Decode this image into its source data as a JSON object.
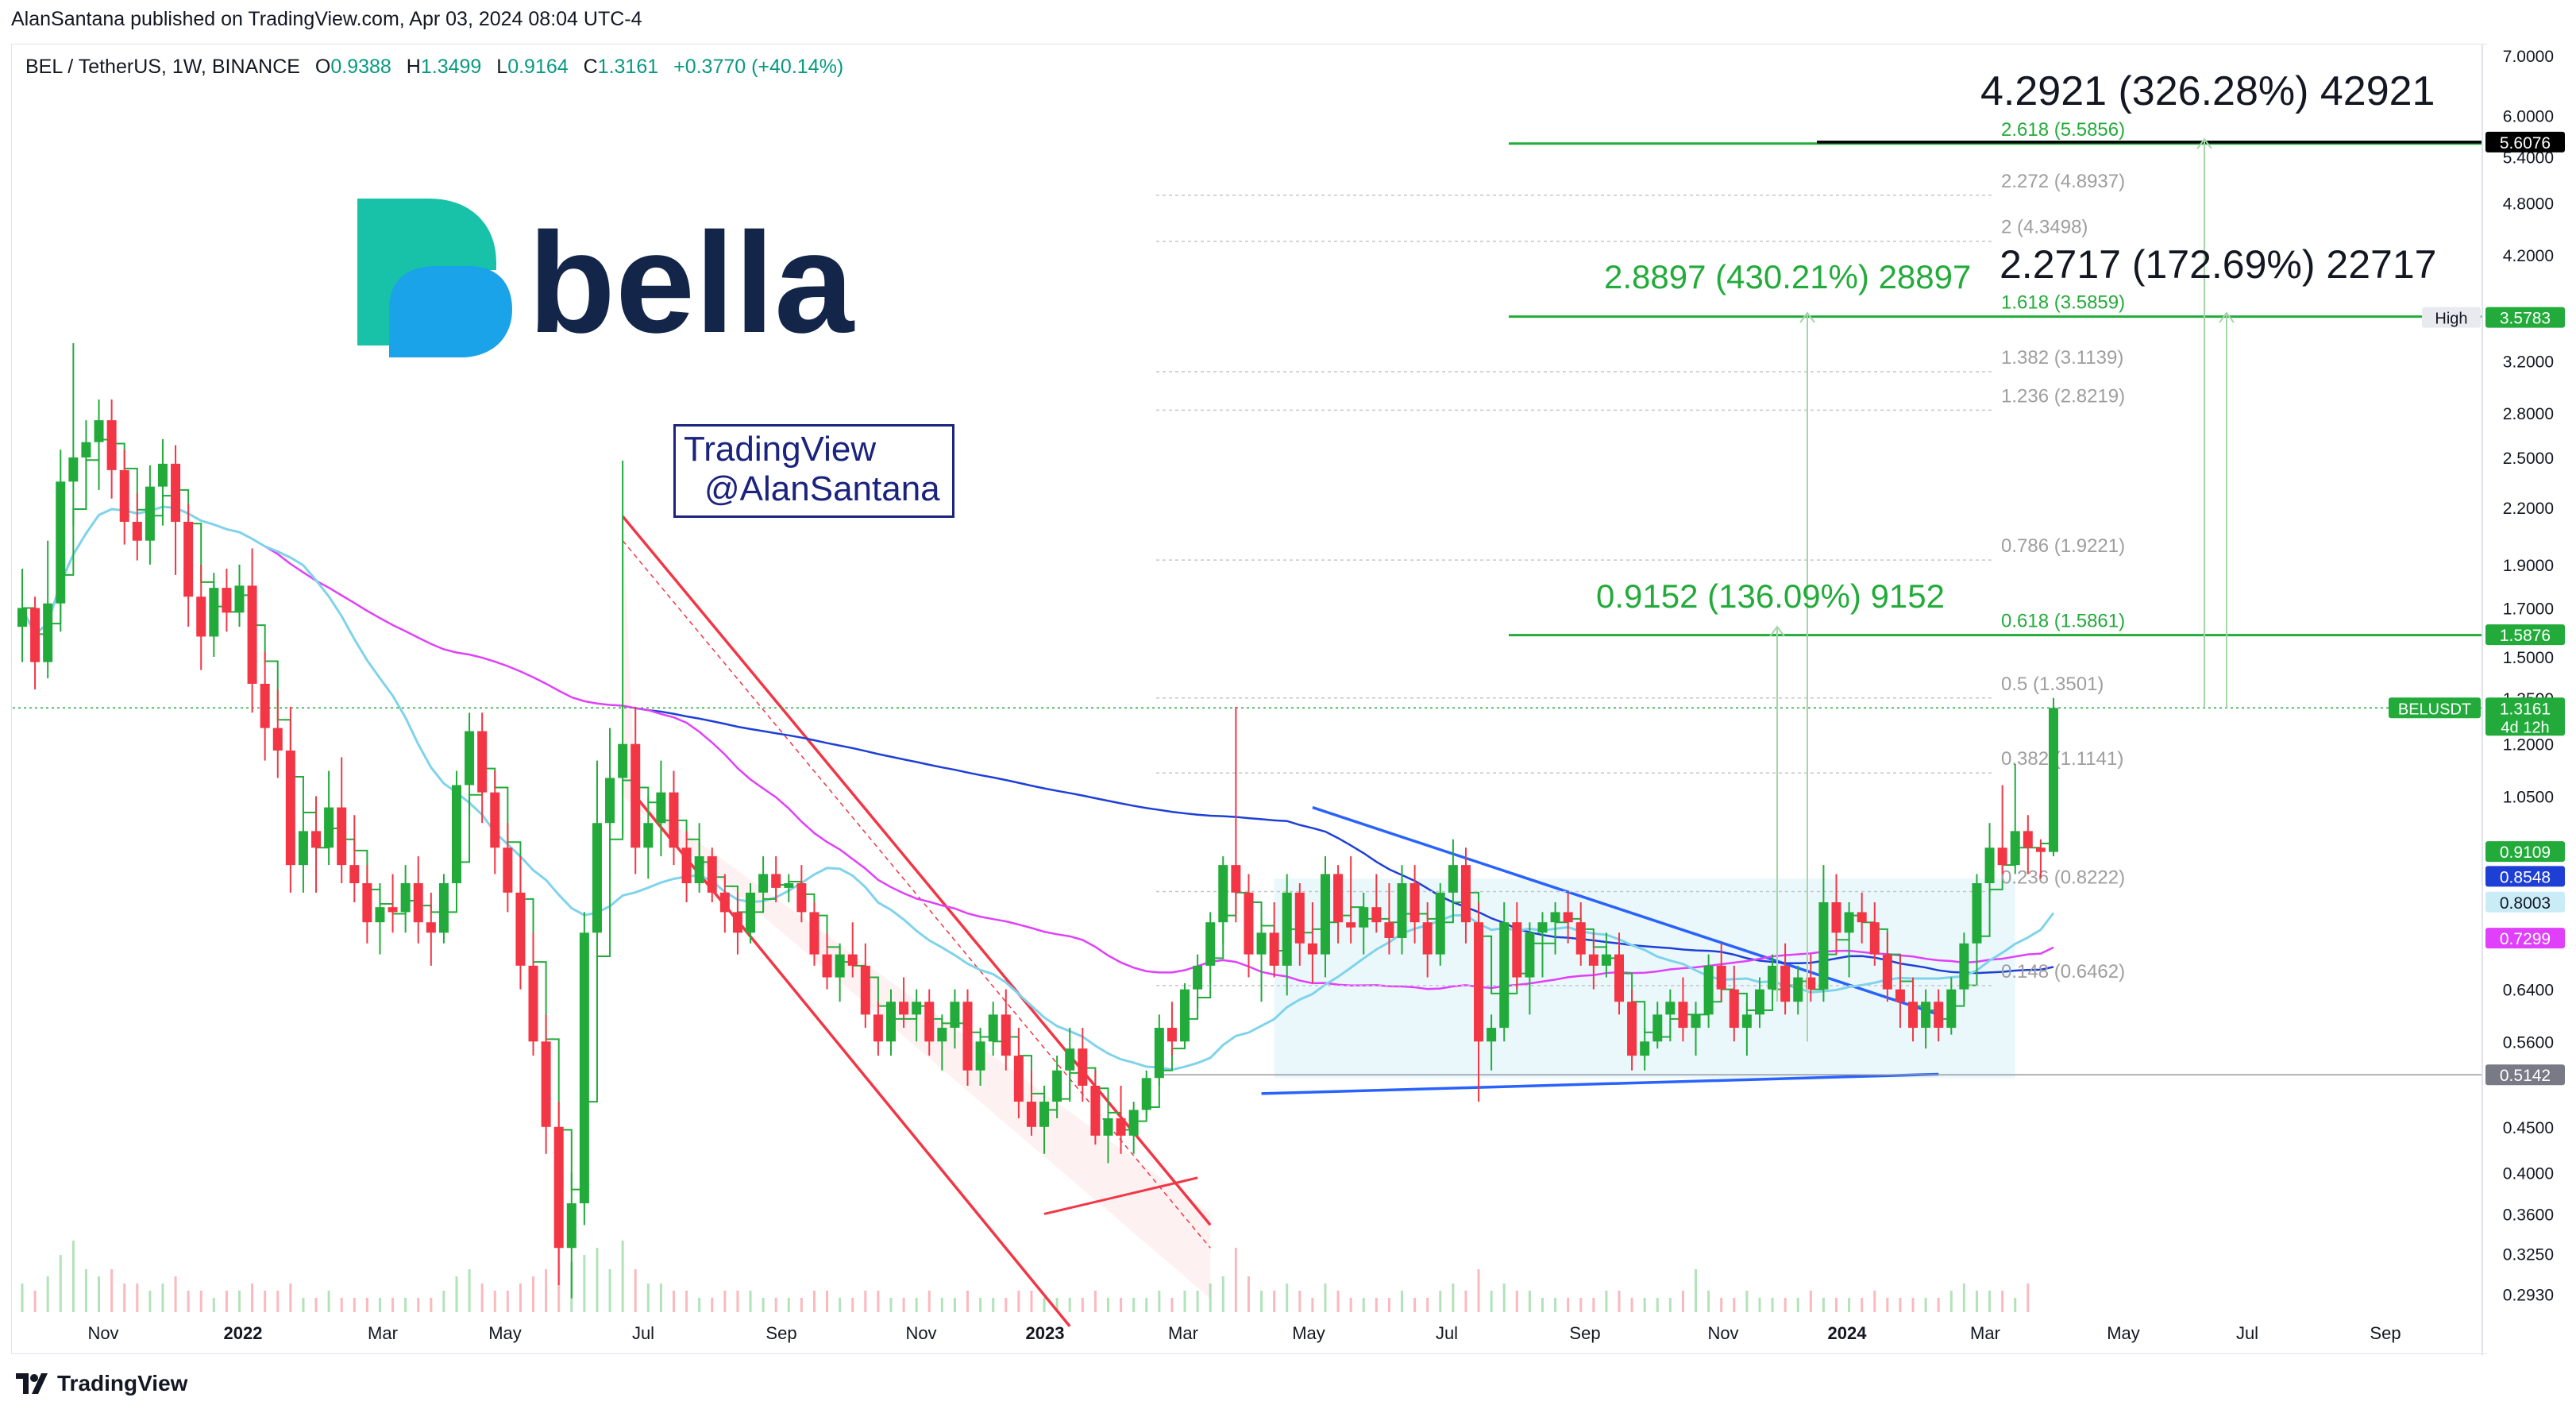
{
  "header": {
    "published_line": "AlanSantana published on TradingView.com, Apr 03, 2024 08:04 UTC-4"
  },
  "symbol": {
    "title": "BEL / TetherUS, 1W, BINANCE",
    "o_label": "O",
    "o": "0.9388",
    "h_label": "H",
    "h": "1.3499",
    "l_label": "L",
    "l": "0.9164",
    "c_label": "C",
    "c": "1.3161",
    "change": "+0.3770 (+40.14%)"
  },
  "logo": {
    "text": "bella",
    "color_dark": "#13264a",
    "color_teal": "#17c2a8",
    "color_blue": "#1aa3e8"
  },
  "watermark": {
    "line1": "TradingView",
    "line2": "@AlanSantana"
  },
  "footer": {
    "brand": "TradingView",
    "icon": "tradingview-logo-icon"
  },
  "colors": {
    "up": "#089981",
    "up_candle": "#22ab3a",
    "down": "#f23645",
    "grid_text": "#131722",
    "fib": "#9e9e9e",
    "fib_green": "#22ab3a",
    "sma_blue": "#1e3fd6",
    "sma_magenta": "#e040fb",
    "sma_cyan": "#7fd3ea",
    "channel_red": "#f23645",
    "triangle_blue": "#2962ff"
  },
  "chart_data": {
    "type": "candlestick",
    "scale": "log",
    "ylim": [
      0.28,
      7.2
    ],
    "y_ticks": [
      "7.0000",
      "6.0000",
      "5.4000",
      "4.8000",
      "4.2000",
      "3.5790",
      "3.2000",
      "2.8000",
      "2.5000",
      "2.2000",
      "1.9000",
      "1.7000",
      "1.5000",
      "1.3500",
      "1.2000",
      "1.0500",
      "0.6400",
      "0.5600",
      "0.4500",
      "0.4000",
      "0.3600",
      "0.3250",
      "0.2930"
    ],
    "x_ticks": [
      "Nov",
      "2022",
      "Mar",
      "May",
      "Jul",
      "Sep",
      "Nov",
      "2023",
      "Mar",
      "May",
      "Jul",
      "Sep",
      "Nov",
      "2024",
      "Mar",
      "May",
      "Jul",
      "Sep"
    ],
    "price_tags": [
      {
        "label": "",
        "value": "5.6076",
        "price": 5.6076,
        "color": "#000000"
      },
      {
        "label": "High",
        "value": "3.5790",
        "price": 3.579,
        "color": "#e8eaf0"
      },
      {
        "label": "",
        "value": "3.5783",
        "price": 3.5783,
        "color": "#22ab3a"
      },
      {
        "label": "",
        "value": "1.5876",
        "price": 1.5876,
        "color": "#22ab3a"
      },
      {
        "label": "BELUSDT",
        "value": "1.3161",
        "price": 1.3161,
        "color": "#22ab3a",
        "countdown": "4d 12h"
      },
      {
        "label": "",
        "value": "0.9109",
        "price": 0.9109,
        "color": "#22ab3a"
      },
      {
        "label": "",
        "value": "0.8548",
        "price": 0.8548,
        "color": "#1e3fd6"
      },
      {
        "label": "",
        "value": "0.8003",
        "price": 0.8003,
        "color": "#c9ecf6"
      },
      {
        "label": "",
        "value": "0.7299",
        "price": 0.7299,
        "color": "#e040fb"
      },
      {
        "label": "",
        "value": "0.5142",
        "price": 0.5142,
        "color": "#787b86"
      }
    ],
    "fib_levels": [
      {
        "label": "2.618 (5.5856)",
        "price": 5.5856,
        "green": true
      },
      {
        "label": "2.272 (4.8937)",
        "price": 4.8937,
        "green": false
      },
      {
        "label": "2 (4.3498)",
        "price": 4.3498,
        "green": false
      },
      {
        "label": "1.618 (3.5859)",
        "price": 3.5859,
        "green": true
      },
      {
        "label": "1.382 (3.1139)",
        "price": 3.1139,
        "green": false
      },
      {
        "label": "1.236 (2.8219)",
        "price": 2.8219,
        "green": false
      },
      {
        "label": "0.786 (1.9221)",
        "price": 1.9221,
        "green": false
      },
      {
        "label": "0.618 (1.5861)",
        "price": 1.5861,
        "green": true
      },
      {
        "label": "0.5 (1.3501)",
        "price": 1.3501,
        "green": false
      },
      {
        "label": "0.382 (1.1141)",
        "price": 1.1141,
        "green": false
      },
      {
        "label": "0.236 (0.8222)",
        "price": 0.8222,
        "green": false
      },
      {
        "label": "0.148 (0.6462)",
        "price": 0.6462,
        "green": false
      }
    ],
    "annotations": [
      {
        "text": "4.2921 (326.28%) 42921",
        "color": "#131722"
      },
      {
        "text": "2.8897 (430.21%) 28897",
        "color": "#22ab3a"
      },
      {
        "text": "2.2717 (172.69%) 22717",
        "color": "#131722"
      },
      {
        "text": "0.9152 (136.09%) 9152",
        "color": "#22ab3a"
      }
    ],
    "candles": [
      [
        1.62,
        1.88,
        1.48,
        1.7
      ],
      [
        1.7,
        1.75,
        1.38,
        1.48
      ],
      [
        1.48,
        2.02,
        1.42,
        1.72
      ],
      [
        1.72,
        2.55,
        1.6,
        2.35
      ],
      [
        2.35,
        3.35,
        2.1,
        2.5
      ],
      [
        2.5,
        2.75,
        2.2,
        2.6
      ],
      [
        2.6,
        2.9,
        2.3,
        2.75
      ],
      [
        2.75,
        2.9,
        2.25,
        2.42
      ],
      [
        2.42,
        2.55,
        2.0,
        2.12
      ],
      [
        2.12,
        2.28,
        1.92,
        2.02
      ],
      [
        2.02,
        2.45,
        1.9,
        2.32
      ],
      [
        2.32,
        2.62,
        2.1,
        2.46
      ],
      [
        2.46,
        2.58,
        1.85,
        2.12
      ],
      [
        2.12,
        2.22,
        1.62,
        1.75
      ],
      [
        1.75,
        1.9,
        1.45,
        1.58
      ],
      [
        1.58,
        1.86,
        1.5,
        1.79
      ],
      [
        1.79,
        1.88,
        1.6,
        1.68
      ],
      [
        1.68,
        1.9,
        1.62,
        1.8
      ],
      [
        1.8,
        1.98,
        1.3,
        1.4
      ],
      [
        1.4,
        1.52,
        1.15,
        1.25
      ],
      [
        1.25,
        1.38,
        1.1,
        1.18
      ],
      [
        1.18,
        1.32,
        0.82,
        0.88
      ],
      [
        0.88,
        1.02,
        0.82,
        0.96
      ],
      [
        0.96,
        1.05,
        0.82,
        0.92
      ],
      [
        0.92,
        1.12,
        0.88,
        1.02
      ],
      [
        1.02,
        1.16,
        0.84,
        0.88
      ],
      [
        0.88,
        1.0,
        0.8,
        0.84
      ],
      [
        0.84,
        0.88,
        0.72,
        0.76
      ],
      [
        0.76,
        0.84,
        0.7,
        0.79
      ],
      [
        0.79,
        0.86,
        0.74,
        0.78
      ],
      [
        0.78,
        0.88,
        0.74,
        0.84
      ],
      [
        0.84,
        0.9,
        0.72,
        0.76
      ],
      [
        0.76,
        0.82,
        0.68,
        0.74
      ],
      [
        0.74,
        0.86,
        0.72,
        0.84
      ],
      [
        0.84,
        1.12,
        0.8,
        1.08
      ],
      [
        1.08,
        1.3,
        1.0,
        1.24
      ],
      [
        1.24,
        1.3,
        0.98,
        1.06
      ],
      [
        1.06,
        1.12,
        0.86,
        0.92
      ],
      [
        0.92,
        0.98,
        0.78,
        0.82
      ],
      [
        0.82,
        0.9,
        0.64,
        0.68
      ],
      [
        0.68,
        0.74,
        0.54,
        0.56
      ],
      [
        0.56,
        0.6,
        0.42,
        0.45
      ],
      [
        0.45,
        0.48,
        0.3,
        0.33
      ],
      [
        0.33,
        0.4,
        0.29,
        0.37
      ],
      [
        0.37,
        0.78,
        0.35,
        0.74
      ],
      [
        0.74,
        1.15,
        0.68,
        0.98
      ],
      [
        0.98,
        1.25,
        0.85,
        1.1
      ],
      [
        1.1,
        2.48,
        0.95,
        1.2
      ],
      [
        1.2,
        1.32,
        0.86,
        0.92
      ],
      [
        0.92,
        1.05,
        0.85,
        0.98
      ],
      [
        0.98,
        1.15,
        0.9,
        1.06
      ],
      [
        1.06,
        1.12,
        0.88,
        0.92
      ],
      [
        0.92,
        0.96,
        0.8,
        0.84
      ],
      [
        0.84,
        0.98,
        0.82,
        0.9
      ],
      [
        0.9,
        0.92,
        0.8,
        0.82
      ],
      [
        0.82,
        0.86,
        0.74,
        0.78
      ],
      [
        0.78,
        0.82,
        0.7,
        0.74
      ],
      [
        0.74,
        0.84,
        0.72,
        0.82
      ],
      [
        0.82,
        0.9,
        0.78,
        0.86
      ],
      [
        0.86,
        0.9,
        0.8,
        0.83
      ],
      [
        0.83,
        0.86,
        0.8,
        0.84
      ],
      [
        0.84,
        0.88,
        0.76,
        0.78
      ],
      [
        0.78,
        0.8,
        0.68,
        0.7
      ],
      [
        0.7,
        0.74,
        0.64,
        0.66
      ],
      [
        0.66,
        0.72,
        0.62,
        0.7
      ],
      [
        0.7,
        0.76,
        0.66,
        0.68
      ],
      [
        0.68,
        0.72,
        0.58,
        0.6
      ],
      [
        0.6,
        0.62,
        0.54,
        0.56
      ],
      [
        0.56,
        0.64,
        0.54,
        0.62
      ],
      [
        0.62,
        0.66,
        0.58,
        0.6
      ],
      [
        0.6,
        0.64,
        0.56,
        0.62
      ],
      [
        0.62,
        0.64,
        0.54,
        0.56
      ],
      [
        0.56,
        0.6,
        0.52,
        0.58
      ],
      [
        0.58,
        0.64,
        0.55,
        0.62
      ],
      [
        0.62,
        0.64,
        0.5,
        0.52
      ],
      [
        0.52,
        0.58,
        0.5,
        0.56
      ],
      [
        0.56,
        0.62,
        0.54,
        0.6
      ],
      [
        0.6,
        0.64,
        0.52,
        0.54
      ],
      [
        0.54,
        0.58,
        0.46,
        0.48
      ],
      [
        0.48,
        0.52,
        0.44,
        0.45
      ],
      [
        0.45,
        0.5,
        0.42,
        0.48
      ],
      [
        0.48,
        0.54,
        0.46,
        0.52
      ],
      [
        0.52,
        0.58,
        0.48,
        0.55
      ],
      [
        0.55,
        0.58,
        0.48,
        0.5
      ],
      [
        0.5,
        0.52,
        0.43,
        0.44
      ],
      [
        0.44,
        0.48,
        0.41,
        0.46
      ],
      [
        0.46,
        0.5,
        0.42,
        0.44
      ],
      [
        0.44,
        0.48,
        0.42,
        0.47
      ],
      [
        0.47,
        0.52,
        0.46,
        0.51
      ],
      [
        0.51,
        0.6,
        0.5,
        0.58
      ],
      [
        0.58,
        0.62,
        0.54,
        0.56
      ],
      [
        0.56,
        0.65,
        0.55,
        0.64
      ],
      [
        0.64,
        0.7,
        0.61,
        0.68
      ],
      [
        0.68,
        0.78,
        0.65,
        0.76
      ],
      [
        0.76,
        0.9,
        0.72,
        0.88
      ],
      [
        0.88,
        1.32,
        0.76,
        0.82
      ],
      [
        0.82,
        0.86,
        0.66,
        0.7
      ],
      [
        0.7,
        0.78,
        0.62,
        0.74
      ],
      [
        0.74,
        0.8,
        0.66,
        0.68
      ],
      [
        0.68,
        0.86,
        0.63,
        0.82
      ],
      [
        0.82,
        0.84,
        0.68,
        0.72
      ],
      [
        0.72,
        0.8,
        0.65,
        0.7
      ],
      [
        0.7,
        0.9,
        0.66,
        0.86
      ],
      [
        0.86,
        0.88,
        0.72,
        0.76
      ],
      [
        0.76,
        0.9,
        0.72,
        0.75
      ],
      [
        0.75,
        0.82,
        0.7,
        0.79
      ],
      [
        0.79,
        0.86,
        0.74,
        0.76
      ],
      [
        0.76,
        0.84,
        0.7,
        0.73
      ],
      [
        0.73,
        0.88,
        0.7,
        0.84
      ],
      [
        0.84,
        0.88,
        0.72,
        0.76
      ],
      [
        0.76,
        0.8,
        0.66,
        0.7
      ],
      [
        0.7,
        0.84,
        0.68,
        0.82
      ],
      [
        0.82,
        0.94,
        0.76,
        0.88
      ],
      [
        0.88,
        0.92,
        0.72,
        0.76
      ],
      [
        0.76,
        0.8,
        0.48,
        0.56
      ],
      [
        0.56,
        0.6,
        0.52,
        0.58
      ],
      [
        0.58,
        0.8,
        0.56,
        0.76
      ],
      [
        0.76,
        0.8,
        0.64,
        0.66
      ],
      [
        0.66,
        0.76,
        0.6,
        0.74
      ],
      [
        0.74,
        0.78,
        0.66,
        0.76
      ],
      [
        0.76,
        0.8,
        0.7,
        0.78
      ],
      [
        0.78,
        0.82,
        0.72,
        0.76
      ],
      [
        0.76,
        0.8,
        0.68,
        0.7
      ],
      [
        0.7,
        0.74,
        0.64,
        0.68
      ],
      [
        0.68,
        0.74,
        0.66,
        0.7
      ],
      [
        0.7,
        0.74,
        0.6,
        0.62
      ],
      [
        0.62,
        0.64,
        0.52,
        0.54
      ],
      [
        0.54,
        0.58,
        0.52,
        0.56
      ],
      [
        0.56,
        0.62,
        0.55,
        0.6
      ],
      [
        0.6,
        0.64,
        0.56,
        0.62
      ],
      [
        0.62,
        0.66,
        0.56,
        0.58
      ],
      [
        0.58,
        0.62,
        0.54,
        0.6
      ],
      [
        0.6,
        0.7,
        0.58,
        0.68
      ],
      [
        0.68,
        0.72,
        0.62,
        0.64
      ],
      [
        0.64,
        0.68,
        0.56,
        0.58
      ],
      [
        0.58,
        0.62,
        0.54,
        0.6
      ],
      [
        0.6,
        0.66,
        0.58,
        0.64
      ],
      [
        0.64,
        0.7,
        0.62,
        0.68
      ],
      [
        0.68,
        0.72,
        0.6,
        0.62
      ],
      [
        0.62,
        0.68,
        0.6,
        0.66
      ],
      [
        0.66,
        0.7,
        0.62,
        0.64
      ],
      [
        0.64,
        0.88,
        0.62,
        0.8
      ],
      [
        0.8,
        0.86,
        0.7,
        0.74
      ],
      [
        0.74,
        0.8,
        0.66,
        0.78
      ],
      [
        0.78,
        0.82,
        0.72,
        0.76
      ],
      [
        0.76,
        0.8,
        0.68,
        0.7
      ],
      [
        0.7,
        0.74,
        0.62,
        0.64
      ],
      [
        0.64,
        0.7,
        0.58,
        0.62
      ],
      [
        0.62,
        0.66,
        0.56,
        0.58
      ],
      [
        0.58,
        0.64,
        0.55,
        0.62
      ],
      [
        0.62,
        0.64,
        0.56,
        0.58
      ],
      [
        0.58,
        0.66,
        0.57,
        0.64
      ],
      [
        0.64,
        0.74,
        0.62,
        0.72
      ],
      [
        0.72,
        0.86,
        0.7,
        0.84
      ],
      [
        0.84,
        0.98,
        0.8,
        0.92
      ],
      [
        0.92,
        1.08,
        0.86,
        0.88
      ],
      [
        0.88,
        1.14,
        0.86,
        0.96
      ],
      [
        0.96,
        1.0,
        0.86,
        0.92
      ],
      [
        0.92,
        0.94,
        0.85,
        0.91
      ],
      [
        0.91,
        1.35,
        0.9,
        1.3161
      ]
    ],
    "volumes_rel": [
      0.4,
      0.3,
      0.5,
      0.8,
      1.0,
      0.6,
      0.5,
      0.6,
      0.4,
      0.4,
      0.3,
      0.4,
      0.5,
      0.3,
      0.3,
      0.2,
      0.3,
      0.3,
      0.4,
      0.3,
      0.3,
      0.4,
      0.2,
      0.2,
      0.3,
      0.2,
      0.2,
      0.2,
      0.2,
      0.2,
      0.2,
      0.2,
      0.2,
      0.3,
      0.5,
      0.6,
      0.4,
      0.3,
      0.3,
      0.4,
      0.5,
      0.6,
      0.9,
      0.7,
      0.8,
      0.9,
      0.6,
      1.0,
      0.6,
      0.4,
      0.4,
      0.3,
      0.3,
      0.2,
      0.2,
      0.3,
      0.3,
      0.3,
      0.2,
      0.2,
      0.2,
      0.2,
      0.3,
      0.3,
      0.2,
      0.2,
      0.3,
      0.3,
      0.2,
      0.2,
      0.2,
      0.3,
      0.2,
      0.2,
      0.3,
      0.2,
      0.2,
      0.2,
      0.3,
      0.3,
      0.2,
      0.2,
      0.2,
      0.2,
      0.3,
      0.2,
      0.2,
      0.2,
      0.2,
      0.3,
      0.2,
      0.3,
      0.3,
      0.4,
      0.5,
      0.9,
      0.5,
      0.3,
      0.3,
      0.4,
      0.3,
      0.2,
      0.4,
      0.3,
      0.2,
      0.2,
      0.2,
      0.2,
      0.3,
      0.2,
      0.2,
      0.3,
      0.4,
      0.3,
      0.6,
      0.3,
      0.4,
      0.3,
      0.3,
      0.2,
      0.2,
      0.2,
      0.2,
      0.2,
      0.3,
      0.3,
      0.2,
      0.2,
      0.2,
      0.2,
      0.3,
      0.6,
      0.3,
      0.2,
      0.2,
      0.3,
      0.2,
      0.2,
      0.2,
      0.2,
      0.3,
      0.2,
      0.2,
      0.2,
      0.2,
      0.3,
      0.2,
      0.2,
      0.2,
      0.2,
      0.2,
      0.3,
      0.4,
      0.3,
      0.3,
      0.3,
      0.2,
      0.4
    ]
  }
}
